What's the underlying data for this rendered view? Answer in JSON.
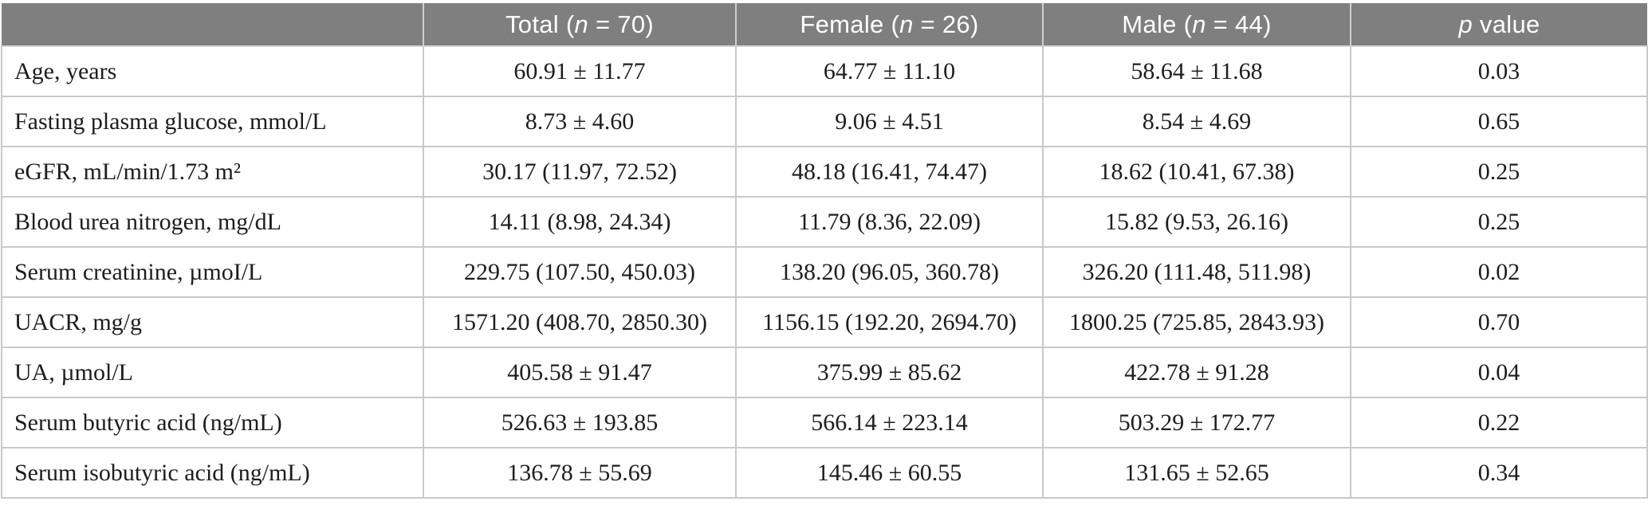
{
  "table": {
    "header": {
      "label": "",
      "columns": [
        {
          "pre": "Total (",
          "var": "n",
          "post": " = 70)"
        },
        {
          "pre": "Female (",
          "var": "n",
          "post": " = 26)"
        },
        {
          "pre": "Male (",
          "var": "n",
          "post": " = 44)"
        },
        {
          "pre": "",
          "var": "p",
          "post": " value"
        }
      ]
    },
    "rows": [
      {
        "label": "Age, years",
        "total": "60.91 ± 11.77",
        "female": "64.77 ± 11.10",
        "male": "58.64 ± 11.68",
        "p": "0.03"
      },
      {
        "label": "Fasting plasma glucose, mmol/L",
        "total": "8.73 ± 4.60",
        "female": "9.06 ± 4.51",
        "male": "8.54 ± 4.69",
        "p": "0.65"
      },
      {
        "label": "eGFR, mL/min/1.73 m²",
        "total": "30.17 (11.97, 72.52)",
        "female": "48.18 (16.41, 74.47)",
        "male": "18.62 (10.41, 67.38)",
        "p": "0.25"
      },
      {
        "label": "Blood urea nitrogen, mg/dL",
        "total": "14.11 (8.98, 24.34)",
        "female": "11.79 (8.36, 22.09)",
        "male": "15.82 (9.53, 26.16)",
        "p": "0.25"
      },
      {
        "label": "Serum creatinine, µmoI/L",
        "total": "229.75 (107.50, 450.03)",
        "female": "138.20 (96.05, 360.78)",
        "male": "326.20 (111.48, 511.98)",
        "p": "0.02"
      },
      {
        "label": "UACR, mg/g",
        "total": "1571.20 (408.70, 2850.30)",
        "female": "1156.15 (192.20, 2694.70)",
        "male": "1800.25 (725.85, 2843.93)",
        "p": "0.70"
      },
      {
        "label": "UA, µmol/L",
        "total": "405.58 ± 91.47",
        "female": "375.99 ± 85.62",
        "male": "422.78 ± 91.28",
        "p": "0.04"
      },
      {
        "label": "Serum butyric acid (ng/mL)",
        "total": "526.63 ± 193.85",
        "female": "566.14 ± 223.14",
        "male": "503.29 ± 172.77",
        "p": "0.22"
      },
      {
        "label": "Serum isobutyric acid (ng/mL)",
        "total": "136.78 ± 55.69",
        "female": "145.46 ± 60.55",
        "male": "131.65 ± 52.65",
        "p": "0.34"
      }
    ]
  },
  "colors": {
    "header_bg": "#7f7f7f",
    "header_text": "#ffffff",
    "row_border": "#c9c9c9",
    "body_text": "#1d1d1b"
  }
}
